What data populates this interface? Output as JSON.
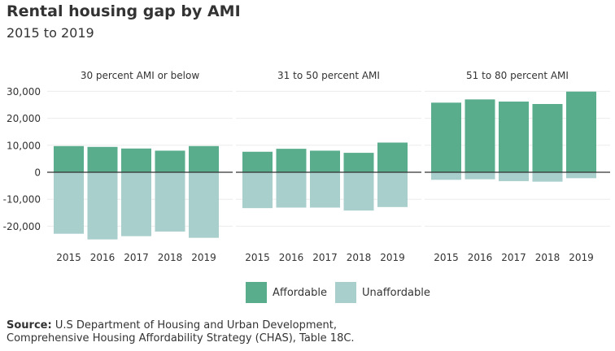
{
  "title": "Rental housing gap by AMI",
  "subtitle": "2015 to 2019",
  "legend": {
    "affordable": "Affordable",
    "unaffordable": "Unaffordable"
  },
  "source": {
    "label": "Source:",
    "line1": "U.S Department of Housing and Urban Development,",
    "line2": "Comprehensive Housing Affordability Strategy (CHAS), Table 18C."
  },
  "colors": {
    "affordable": "#5aad8c",
    "unaffordable": "#a9cfcc",
    "zero_line": "#333333",
    "grid": "#ececec"
  },
  "chart_data": {
    "type": "bar",
    "stacked": "diverging",
    "title": "Rental housing gap by AMI",
    "subtitle": "2015 to 2019",
    "ylim": [
      -26000,
      31000
    ],
    "yticks": [
      30000,
      20000,
      10000,
      0,
      -10000,
      -20000
    ],
    "ytick_labels": [
      "30,000",
      "20,000",
      "10,000",
      "0",
      "-10,000",
      "-20,000"
    ],
    "categories": [
      "2015",
      "2016",
      "2017",
      "2018",
      "2019"
    ],
    "panels": [
      {
        "title": "30 percent AMI or below",
        "series": [
          {
            "name": "Affordable",
            "values": [
              9700,
              9400,
              8800,
              8000,
              9700
            ]
          },
          {
            "name": "Unaffordable",
            "values": [
              -22800,
              -24900,
              -23700,
              -22000,
              -24300
            ]
          }
        ]
      },
      {
        "title": "31 to 50 percent AMI",
        "series": [
          {
            "name": "Affordable",
            "values": [
              7600,
              8700,
              8000,
              7200,
              11000
            ]
          },
          {
            "name": "Unaffordable",
            "values": [
              -13300,
              -13100,
              -13100,
              -14200,
              -12900
            ]
          }
        ]
      },
      {
        "title": "51 to 80 percent AMI",
        "series": [
          {
            "name": "Affordable",
            "values": [
              25800,
              27000,
              26200,
              25300,
              29900
            ]
          },
          {
            "name": "Unaffordable",
            "values": [
              -2800,
              -2600,
              -3300,
              -3500,
              -2200
            ]
          }
        ]
      }
    ]
  }
}
